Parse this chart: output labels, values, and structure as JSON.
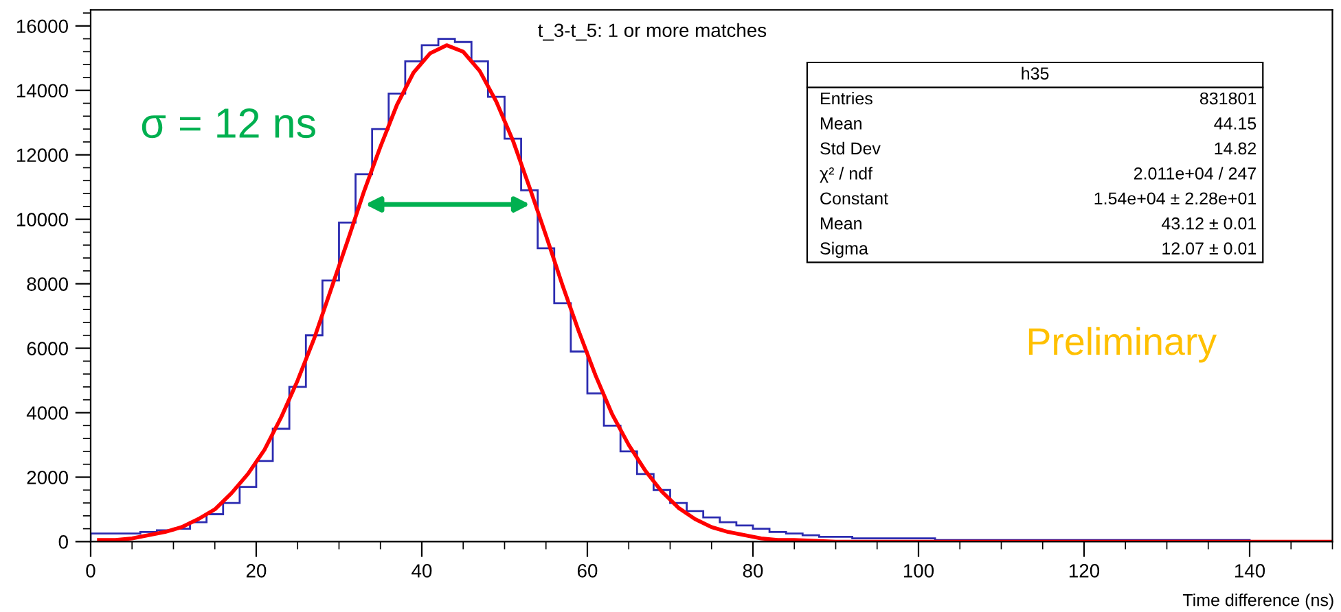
{
  "chart_data": {
    "type": "histogram",
    "title": "t_3-t_5: 1 or more matches",
    "xlabel": "Time difference (ns)",
    "bins": [
      0,
      2,
      4,
      6,
      8,
      10,
      12,
      14,
      16,
      18,
      20,
      22,
      24,
      26,
      28,
      30,
      32,
      34,
      36,
      38,
      40,
      42,
      44,
      46,
      48,
      50,
      52,
      54,
      56,
      58,
      60,
      62,
      64,
      66,
      68,
      70,
      72,
      74,
      76,
      78,
      80,
      82,
      84,
      86,
      88,
      90,
      92,
      94,
      96,
      98,
      100,
      102,
      104,
      106,
      108,
      110,
      112,
      114,
      116,
      118,
      120,
      122,
      124,
      126,
      128,
      130,
      132,
      134,
      136,
      138,
      140,
      142,
      144,
      146,
      148,
      150
    ],
    "series": [
      {
        "color": "#2b2bb0",
        "values": [
          250,
          250,
          250,
          300,
          350,
          400,
          600,
          850,
          1200,
          1700,
          2500,
          3500,
          4800,
          6400,
          8100,
          9900,
          11400,
          12800,
          13900,
          14900,
          15400,
          15600,
          15500,
          14900,
          13800,
          12500,
          10900,
          9100,
          7400,
          5900,
          4600,
          3600,
          2800,
          2100,
          1600,
          1200,
          950,
          750,
          600,
          500,
          400,
          300,
          250,
          200,
          150,
          150,
          100,
          100,
          100,
          100,
          100,
          50,
          50,
          50,
          50,
          50,
          50,
          50,
          50,
          50,
          50,
          50,
          50,
          50,
          50,
          50,
          50,
          50,
          50,
          50,
          0,
          0,
          0,
          0,
          0
        ]
      },
      {
        "type": "line",
        "color": "#ff0000",
        "x": [
          1,
          3,
          5,
          7,
          9,
          11,
          13,
          15,
          17,
          19,
          21,
          23,
          25,
          27,
          29,
          31,
          33,
          35,
          37,
          39,
          41,
          43,
          45,
          47,
          49,
          51,
          53,
          55,
          57,
          59,
          61,
          63,
          65,
          67,
          69,
          71,
          73,
          75,
          77,
          79,
          81,
          83,
          85,
          90,
          100,
          110,
          120,
          130,
          140,
          150
        ],
        "values": [
          50,
          50,
          100,
          200,
          300,
          450,
          700,
          1000,
          1500,
          2100,
          2850,
          3850,
          5000,
          6300,
          7800,
          9300,
          10850,
          12250,
          13550,
          14550,
          15150,
          15400,
          15200,
          14600,
          13650,
          12450,
          11000,
          9500,
          7950,
          6500,
          5150,
          3950,
          3000,
          2200,
          1550,
          1050,
          700,
          450,
          300,
          200,
          100,
          50,
          50,
          0,
          0,
          0,
          0,
          0,
          0,
          0
        ]
      }
    ],
    "xlim": [
      0,
      150
    ],
    "xticks": [
      0,
      20,
      40,
      60,
      80,
      100,
      120,
      140
    ],
    "ylim": [
      0,
      16500
    ],
    "yticks": [
      0,
      2000,
      4000,
      6000,
      8000,
      10000,
      12000,
      14000,
      16000
    ],
    "grid": false,
    "legend": false,
    "annotations": [
      "σ = 12 ns",
      "Preliminary",
      "h35",
      "Entries",
      "831801",
      "Mean",
      "44.15",
      "Std Dev",
      "14.82",
      "χ² / ndf",
      "2.011e+04 / 247",
      "Constant",
      "1.54e+04 ± 2.28e+01",
      "Mean",
      "43.12 ± 0.01",
      "Sigma",
      "12.07 ± 0.01"
    ]
  }
}
